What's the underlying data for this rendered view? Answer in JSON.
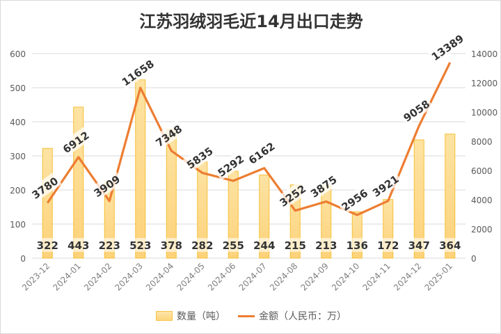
{
  "chart_data": {
    "type": "bar+line",
    "title": "江苏羽绒羽毛近14月出口走势",
    "categories": [
      "2023-12",
      "2024-01",
      "2024-02",
      "2024-03",
      "2024-04",
      "2024-05",
      "2024-06",
      "2024-07",
      "2024-08",
      "2024-09",
      "2024-10",
      "2024-11",
      "2024-12",
      "2025-01"
    ],
    "series": [
      {
        "name": "数量（吨）",
        "type": "bar",
        "axis": "left",
        "color": "#fdd67d",
        "values": [
          322,
          443,
          223,
          523,
          378,
          282,
          255,
          244,
          215,
          213,
          136,
          172,
          347,
          364
        ]
      },
      {
        "name": "金额（人民币：万）",
        "type": "line",
        "axis": "right",
        "color": "#ed7d31",
        "values": [
          3780,
          6912,
          3909,
          11658,
          7348,
          5835,
          5292,
          6162,
          3252,
          3875,
          2956,
          3921,
          9058,
          13389
        ]
      }
    ],
    "y_left": {
      "ylim": [
        0,
        600
      ],
      "ticks": [
        "0",
        "100",
        "200",
        "300",
        "400",
        "500",
        "600"
      ]
    },
    "y_right": {
      "ylim": [
        0,
        14000
      ],
      "ticks": [
        "0",
        "2000",
        "4000",
        "6000",
        "8000",
        "10000",
        "12000",
        "14000"
      ]
    },
    "grid": true,
    "legend_position": "bottom"
  }
}
